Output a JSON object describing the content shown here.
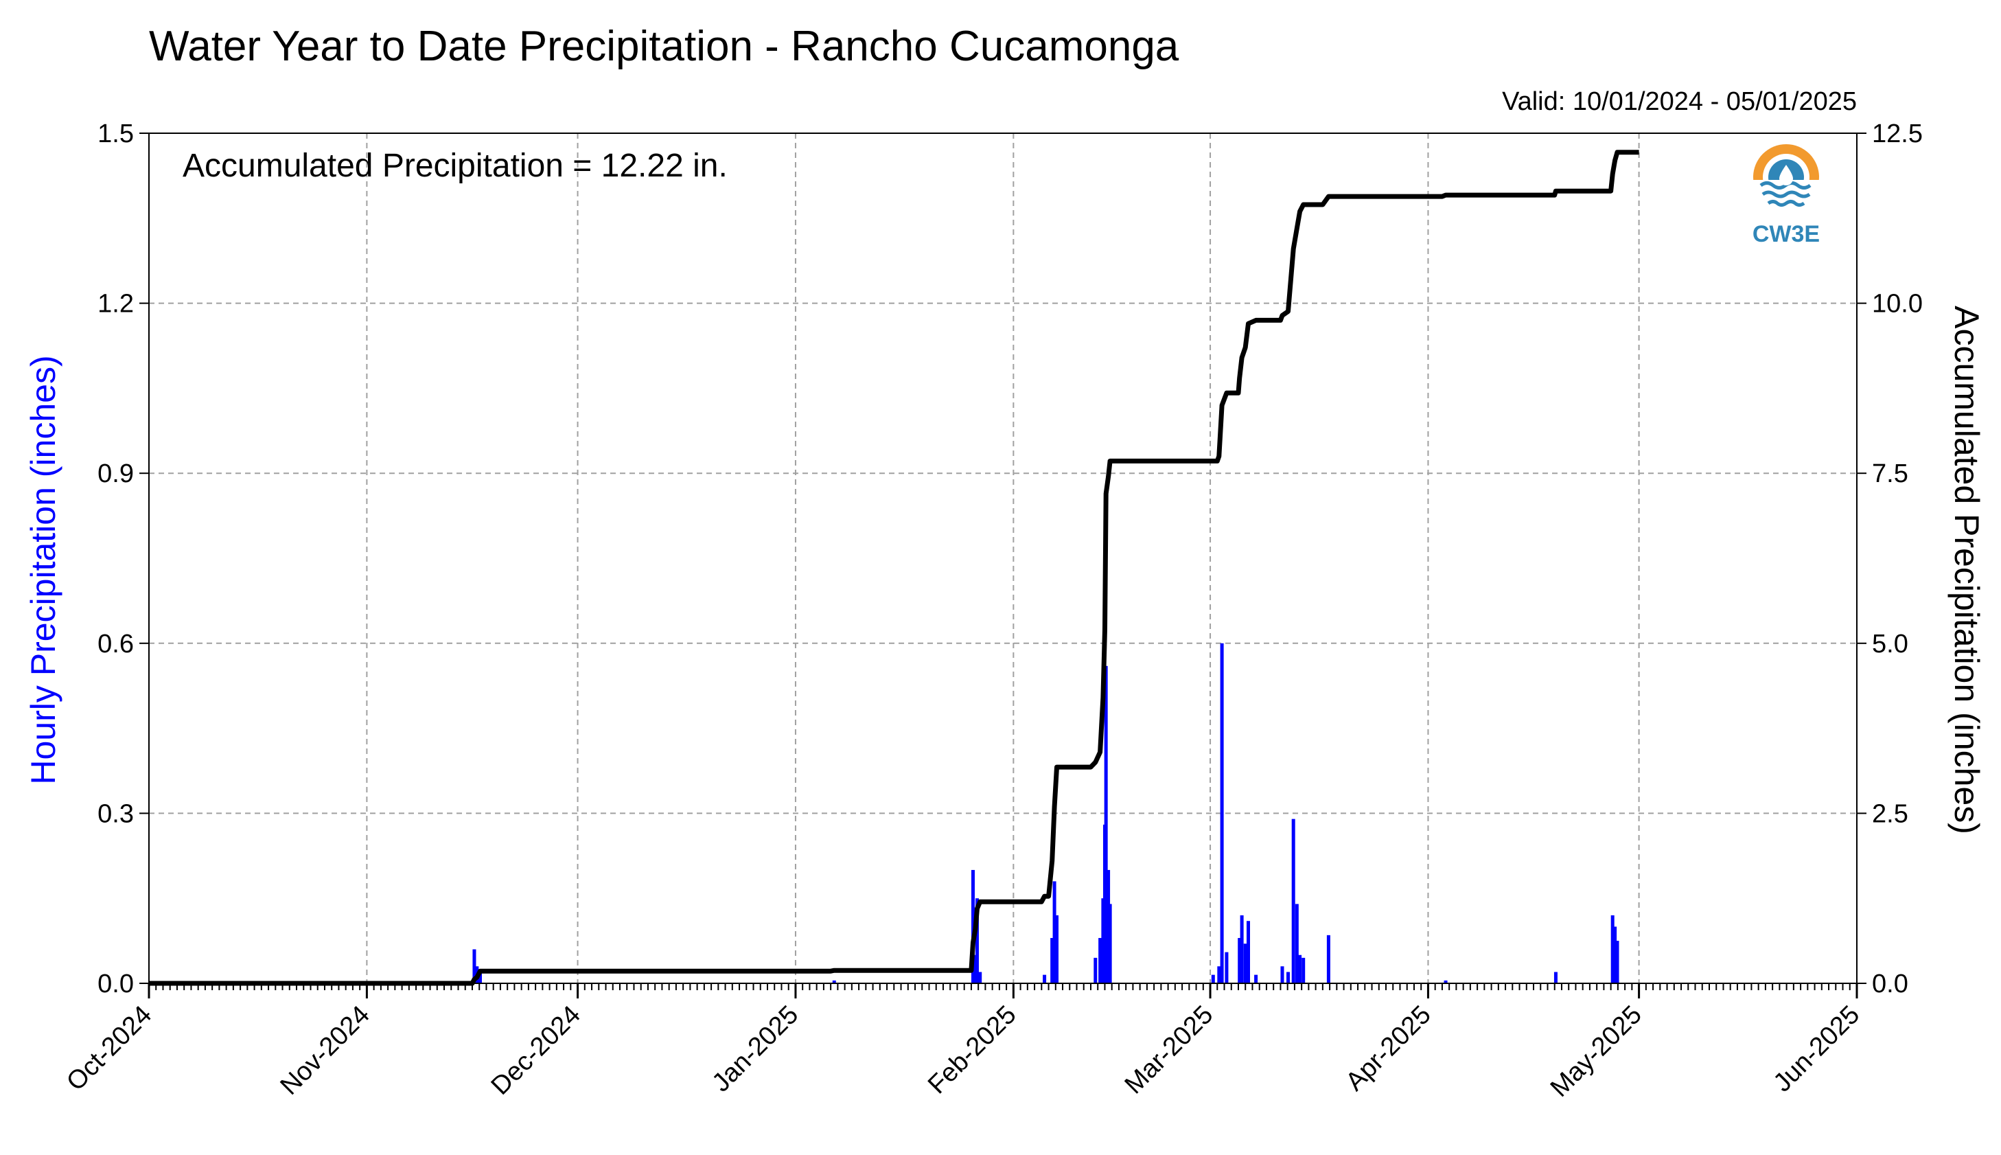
{
  "chart_data": {
    "type": "bar",
    "title": "Water Year to Date Precipitation - Rancho Cucamonga",
    "subtitle": "Valid: 10/01/2024 - 05/01/2025",
    "annotation": "Accumulated Precipitation = 12.22 in.",
    "logo_text": "CW3E",
    "y_left": {
      "label": "Hourly Precipitation (inches)",
      "range": [
        0,
        1.5
      ],
      "ticks": [
        "0.0",
        "0.3",
        "0.6",
        "0.9",
        "1.2",
        "1.5"
      ],
      "color": "#0000ff"
    },
    "y_right": {
      "label": "Accumulated Precipitation (inches)",
      "range": [
        0,
        12.5
      ],
      "ticks": [
        "0.0",
        "2.5",
        "5.0",
        "7.5",
        "10.0",
        "12.5"
      ]
    },
    "x": {
      "range": [
        "2024-10-01",
        "2025-06-01"
      ],
      "ticks": [
        "Oct-2024",
        "Nov-2024",
        "Dec-2024",
        "Jan-2025",
        "Feb-2025",
        "Mar-2025",
        "Apr-2025",
        "May-2025",
        "Jun-2025"
      ],
      "tick_dates": [
        "2024-10-01",
        "2024-11-01",
        "2024-12-01",
        "2025-01-01",
        "2025-02-01",
        "2025-03-01",
        "2025-04-01",
        "2025-05-01",
        "2025-06-01"
      ]
    },
    "grid": true,
    "series": [
      {
        "name": "Hourly Precipitation",
        "type": "bar",
        "color": "#0000ff",
        "points": [
          [
            "2024-11-16T07:00",
            0.06
          ],
          [
            "2024-11-16T16:00",
            0.03
          ],
          [
            "2024-11-17T03:00",
            0.02
          ],
          [
            "2025-01-06T12:00",
            0.005
          ],
          [
            "2025-01-26T06:00",
            0.2
          ],
          [
            "2025-01-26T14:00",
            0.05
          ],
          [
            "2025-01-26T20:00",
            0.15
          ],
          [
            "2025-01-27T06:00",
            0.02
          ],
          [
            "2025-02-05T10:00",
            0.015
          ],
          [
            "2025-02-06T12:00",
            0.08
          ],
          [
            "2025-02-06T20:00",
            0.18
          ],
          [
            "2025-02-07T04:00",
            0.12
          ],
          [
            "2025-02-12T16:00",
            0.045
          ],
          [
            "2025-02-13T08:00",
            0.08
          ],
          [
            "2025-02-13T18:00",
            0.15
          ],
          [
            "2025-02-14T00:00",
            0.28
          ],
          [
            "2025-02-14T04:00",
            0.56
          ],
          [
            "2025-02-14T12:00",
            0.2
          ],
          [
            "2025-02-14T18:00",
            0.14
          ],
          [
            "2025-03-01T10:00",
            0.015
          ],
          [
            "2025-03-02T06:00",
            0.03
          ],
          [
            "2025-03-02T16:00",
            0.6
          ],
          [
            "2025-03-03T08:00",
            0.055
          ],
          [
            "2025-03-05T04:00",
            0.08
          ],
          [
            "2025-03-05T12:00",
            0.12
          ],
          [
            "2025-03-06T00:00",
            0.07
          ],
          [
            "2025-03-06T10:00",
            0.11
          ],
          [
            "2025-03-07T12:00",
            0.015
          ],
          [
            "2025-03-11T06:00",
            0.03
          ],
          [
            "2025-03-12T02:00",
            0.02
          ],
          [
            "2025-03-12T20:00",
            0.29
          ],
          [
            "2025-03-13T08:00",
            0.14
          ],
          [
            "2025-03-13T18:00",
            0.05
          ],
          [
            "2025-03-14T06:00",
            0.045
          ],
          [
            "2025-03-17T20:00",
            0.085
          ],
          [
            "2025-04-03T12:00",
            0.005
          ],
          [
            "2025-04-19T04:00",
            0.02
          ],
          [
            "2025-04-27T06:00",
            0.12
          ],
          [
            "2025-04-27T14:00",
            0.1
          ],
          [
            "2025-04-27T22:00",
            0.075
          ]
        ]
      },
      {
        "name": "Accumulated Precipitation",
        "type": "line",
        "color": "#000000",
        "points": [
          [
            "2024-10-01T00:00",
            0.0
          ],
          [
            "2024-11-16T00:00",
            0.0
          ],
          [
            "2024-11-16T07:00",
            0.06
          ],
          [
            "2024-11-16T16:00",
            0.09
          ],
          [
            "2024-11-17T03:00",
            0.18
          ],
          [
            "2025-01-06T00:00",
            0.18
          ],
          [
            "2025-01-06T12:00",
            0.19
          ],
          [
            "2025-01-26T00:00",
            0.19
          ],
          [
            "2025-01-26T06:00",
            0.6
          ],
          [
            "2025-01-26T14:00",
            0.8
          ],
          [
            "2025-01-26T20:00",
            1.1
          ],
          [
            "2025-01-27T06:00",
            1.2
          ],
          [
            "2025-02-05T00:00",
            1.2
          ],
          [
            "2025-02-05T10:00",
            1.28
          ],
          [
            "2025-02-06T00:00",
            1.28
          ],
          [
            "2025-02-06T12:00",
            1.8
          ],
          [
            "2025-02-06T20:00",
            2.6
          ],
          [
            "2025-02-07T04:00",
            3.18
          ],
          [
            "2025-02-12T00:00",
            3.18
          ],
          [
            "2025-02-12T16:00",
            3.25
          ],
          [
            "2025-02-13T08:00",
            3.4
          ],
          [
            "2025-02-13T18:00",
            4.2
          ],
          [
            "2025-02-14T00:00",
            5.2
          ],
          [
            "2025-02-14T04:00",
            7.2
          ],
          [
            "2025-02-14T12:00",
            7.45
          ],
          [
            "2025-02-14T18:00",
            7.68
          ],
          [
            "2025-03-02T00:00",
            7.68
          ],
          [
            "2025-03-02T06:00",
            7.75
          ],
          [
            "2025-03-02T16:00",
            8.5
          ],
          [
            "2025-03-03T08:00",
            8.68
          ],
          [
            "2025-03-05T00:00",
            8.68
          ],
          [
            "2025-03-05T04:00",
            8.9
          ],
          [
            "2025-03-05T12:00",
            9.2
          ],
          [
            "2025-03-06T00:00",
            9.35
          ],
          [
            "2025-03-06T10:00",
            9.7
          ],
          [
            "2025-03-07T12:00",
            9.75
          ],
          [
            "2025-03-11T00:00",
            9.75
          ],
          [
            "2025-03-11T06:00",
            9.82
          ],
          [
            "2025-03-12T02:00",
            9.88
          ],
          [
            "2025-03-12T20:00",
            10.8
          ],
          [
            "2025-03-13T08:00",
            11.1
          ],
          [
            "2025-03-13T18:00",
            11.35
          ],
          [
            "2025-03-14T06:00",
            11.45
          ],
          [
            "2025-03-17T00:00",
            11.45
          ],
          [
            "2025-03-17T20:00",
            11.57
          ],
          [
            "2025-04-03T00:00",
            11.57
          ],
          [
            "2025-04-03T12:00",
            11.59
          ],
          [
            "2025-04-19T00:00",
            11.59
          ],
          [
            "2025-04-19T04:00",
            11.65
          ],
          [
            "2025-04-27T00:00",
            11.65
          ],
          [
            "2025-04-27T06:00",
            11.9
          ],
          [
            "2025-04-27T14:00",
            12.1
          ],
          [
            "2025-04-27T22:00",
            12.22
          ],
          [
            "2025-05-01T00:00",
            12.22
          ]
        ]
      }
    ]
  }
}
